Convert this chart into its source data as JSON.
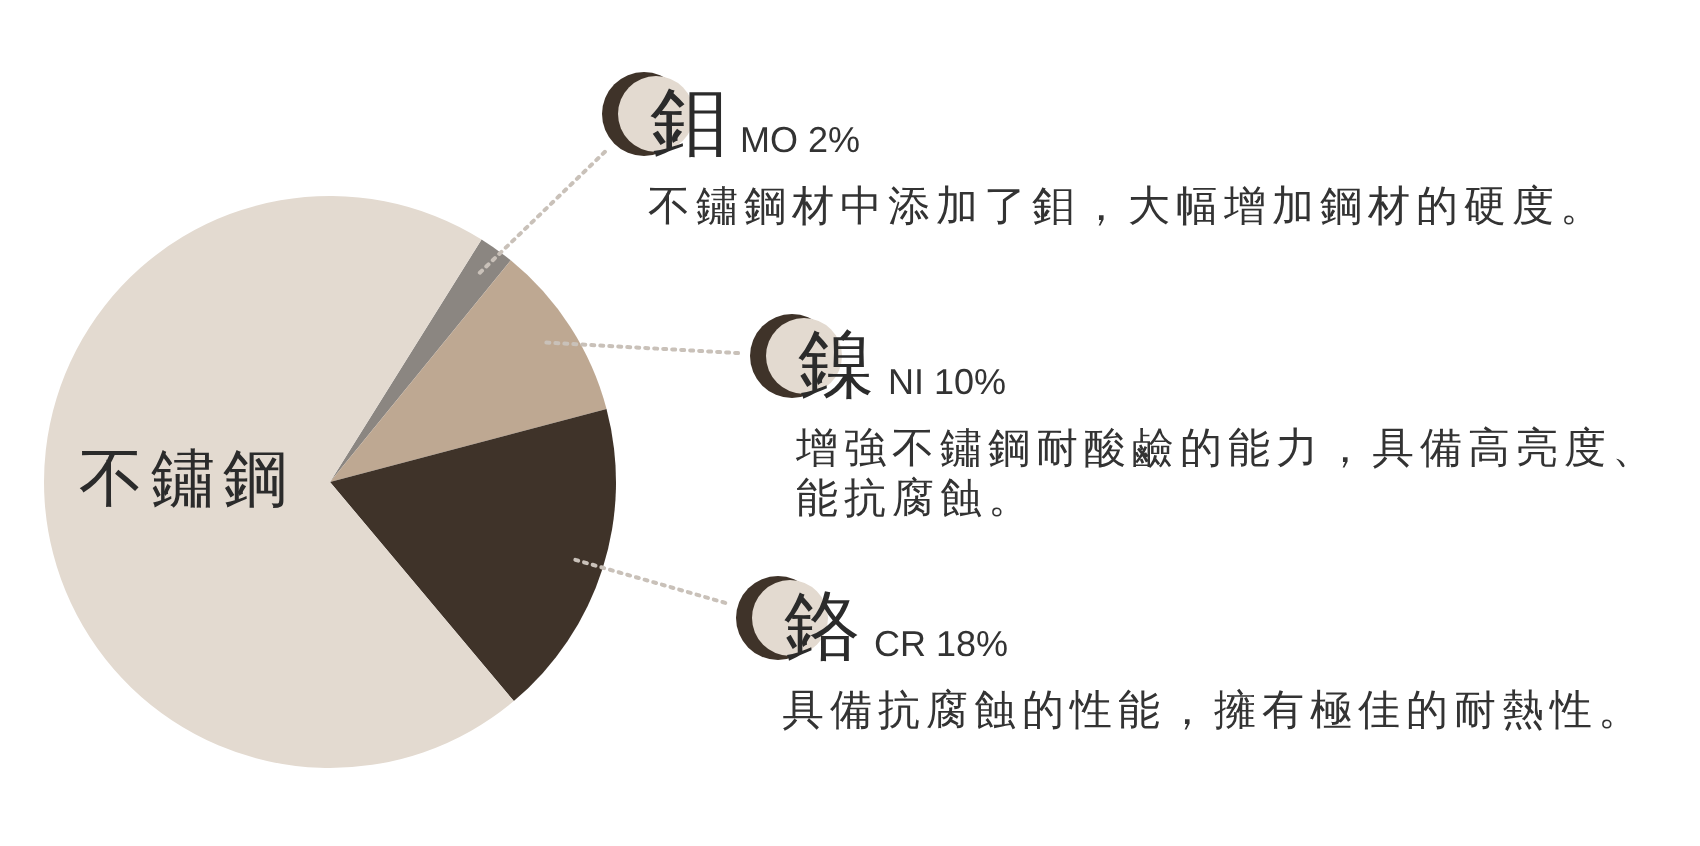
{
  "chart_data": {
    "type": "pie",
    "categories": [
      "鉬",
      "鎳",
      "鉻",
      "不鏽鋼"
    ],
    "values": [
      2,
      10,
      18,
      70
    ],
    "colors": [
      "#8b8681",
      "#bea892",
      "#3f3329",
      "#e3dad0"
    ],
    "value_labels": [
      "MO 2%",
      "NI 10%",
      "CR 18%",
      null
    ],
    "annotations": [
      "不鏽鋼材中添加了鉬，大幅增加鋼材的硬度。",
      "增強不鏽鋼耐酸鹼的能力，具備高亮度、能抗腐蝕。",
      "具備抗腐蝕的性能，擁有極佳的耐熱性。"
    ]
  }
}
